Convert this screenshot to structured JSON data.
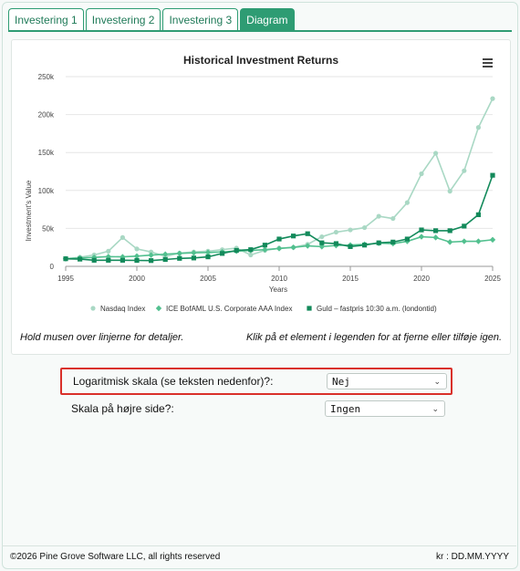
{
  "tabs": [
    {
      "label": "Investering 1",
      "active": false
    },
    {
      "label": "Investering 2",
      "active": false
    },
    {
      "label": "Investering 3",
      "active": false
    },
    {
      "label": "Diagram",
      "active": true
    }
  ],
  "accent_color": "#2e9c73",
  "chart_data": {
    "type": "line",
    "title": "Historical Investment Returns",
    "xlabel": "Years",
    "ylabel": "Investment's Value",
    "xlim": [
      1995,
      2025
    ],
    "ylim": [
      0,
      250000
    ],
    "x_ticks": [
      "1995",
      "2000",
      "2005",
      "2010",
      "2015",
      "2020",
      "2025"
    ],
    "y_ticks": [
      {
        "v": 0,
        "label": "0"
      },
      {
        "v": 50000,
        "label": "50k"
      },
      {
        "v": 100000,
        "label": "100k"
      },
      {
        "v": 150000,
        "label": "150k"
      },
      {
        "v": 200000,
        "label": "200k"
      },
      {
        "v": 250000,
        "label": "250k"
      }
    ],
    "grid": true,
    "legend_position": "bottom",
    "x": [
      1995,
      1996,
      1997,
      1998,
      1999,
      2000,
      2001,
      2002,
      2003,
      2004,
      2005,
      2006,
      2007,
      2008,
      2009,
      2010,
      2011,
      2012,
      2013,
      2014,
      2015,
      2016,
      2017,
      2018,
      2019,
      2020,
      2021,
      2022,
      2023,
      2024,
      2025
    ],
    "series": [
      {
        "name": "Nasdaq Index",
        "marker": "circle",
        "color": "#a9d8c4",
        "values": [
          10000,
          12000,
          15000,
          20000,
          38000,
          23000,
          19000,
          13000,
          17500,
          19000,
          20000,
          22000,
          24000,
          15000,
          21000,
          24000,
          25000,
          29000,
          39000,
          45000,
          48000,
          51000,
          66000,
          63000,
          84000,
          122000,
          149000,
          99000,
          126000,
          183000,
          221000
        ]
      },
      {
        "name": "ICE BofAML U.S. Corporate AAA Index",
        "marker": "diamond",
        "color": "#52c08f",
        "values": [
          10000,
          11000,
          11800,
          12800,
          12500,
          13500,
          14800,
          16000,
          17000,
          17800,
          18200,
          19000,
          20000,
          21000,
          22000,
          23500,
          25000,
          27000,
          26000,
          27500,
          28000,
          29000,
          30500,
          30000,
          33000,
          39000,
          38000,
          32000,
          33000,
          33000,
          35000
        ]
      },
      {
        "name": "Guld – fastpris 10:30 a.m. (londontid)",
        "marker": "square",
        "color": "#138a5b",
        "values": [
          10000,
          9500,
          8000,
          8000,
          8000,
          7800,
          7600,
          9000,
          10500,
          11000,
          12500,
          17000,
          21000,
          22000,
          28000,
          36000,
          40000,
          43000,
          31000,
          30000,
          26000,
          28000,
          31000,
          32000,
          36000,
          48000,
          47000,
          47000,
          53000,
          68000,
          120000
        ]
      }
    ]
  },
  "chart_hint_left": "Hold musen over linjerne for detaljer.",
  "chart_hint_right": "Klik på et element i legenden for at fjerne eller tilføje igen.",
  "settings": {
    "log_scale": {
      "label": "Logaritmisk skala (se teksten nedenfor)?:",
      "value": "Nej"
    },
    "right_scale": {
      "label": "Skala på højre side?:",
      "value": "Ingen"
    }
  },
  "footer": {
    "copyright": "©2026 Pine Grove Software LLC, all rights reserved",
    "currency": "kr : DD.MM.YYYY"
  }
}
